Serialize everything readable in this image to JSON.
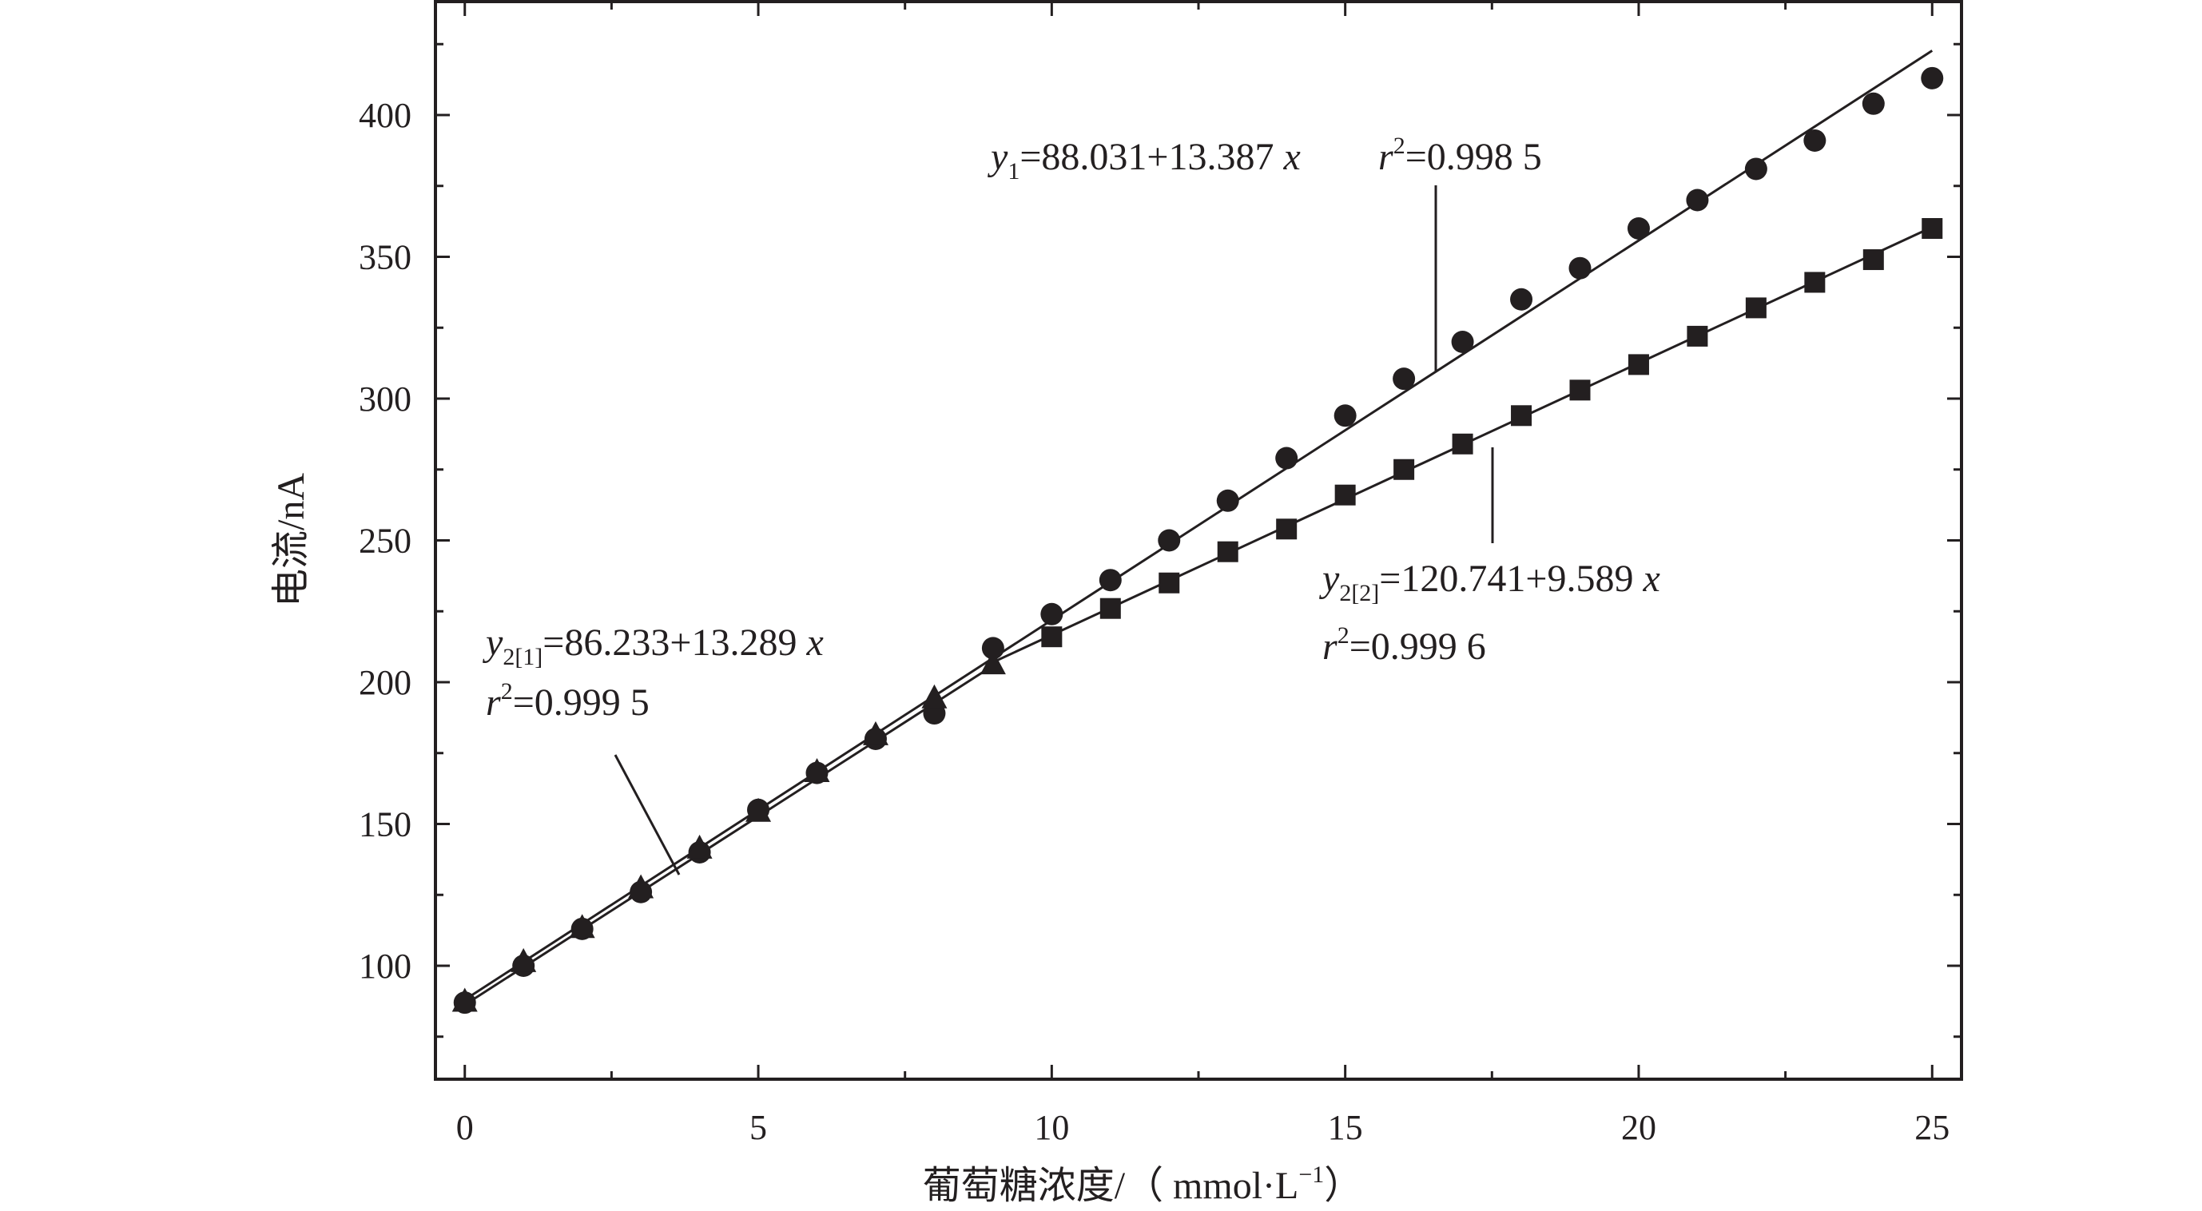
{
  "chart_data": {
    "type": "scatter",
    "xlabel": "葡萄糖浓度/（ mmol·L",
    "xlabel_sup": "−1",
    "xlabel_close": "）",
    "ylabel": "电流/nA",
    "xlim": [
      -0.5,
      25.5
    ],
    "ylim": [
      60,
      440
    ],
    "xticks": [
      0,
      5,
      10,
      15,
      20,
      25
    ],
    "yticks": [
      100,
      150,
      200,
      250,
      300,
      350,
      400
    ],
    "grid": false,
    "series": [
      {
        "marker": "circle",
        "x": [
          0,
          1,
          2,
          3,
          4,
          5,
          6,
          7,
          8,
          9,
          10,
          11,
          12,
          13,
          14,
          15,
          16,
          17,
          18,
          19,
          20,
          21,
          22,
          23,
          24,
          25
        ],
        "y": [
          87,
          100,
          113,
          126,
          140,
          155,
          168,
          180,
          189,
          212,
          224,
          236,
          250,
          264,
          279,
          294,
          307,
          320,
          335,
          346,
          360,
          370,
          381,
          391,
          404,
          413
        ],
        "fit": {
          "intercept": 88.031,
          "slope": 13.387,
          "x_range": [
            0,
            25
          ]
        }
      },
      {
        "marker": "triangle",
        "x": [
          0,
          1,
          2,
          3,
          4,
          5,
          6,
          7,
          8,
          9
        ],
        "y": [
          87,
          101,
          113,
          127,
          141,
          154,
          168,
          181,
          194,
          206
        ],
        "fit": {
          "intercept": 86.233,
          "slope": 13.289,
          "x_range": [
            0,
            9
          ]
        }
      },
      {
        "marker": "square",
        "x": [
          10,
          11,
          12,
          13,
          14,
          15,
          16,
          17,
          18,
          19,
          20,
          21,
          22,
          23,
          24,
          25
        ],
        "y": [
          216,
          226,
          235,
          246,
          254,
          266,
          275,
          284,
          294,
          303,
          312,
          322,
          332,
          341,
          349,
          360
        ],
        "fit": {
          "intercept": 120.741,
          "slope": 9.589,
          "x_range": [
            9,
            25
          ]
        }
      }
    ],
    "annotations": {
      "eq1": {
        "y": "y",
        "sub": "1",
        "eq": "=88.031+13.387 ",
        "x": "x",
        "r": "r",
        "r_sup": "2",
        "r_eq": "=0.998 5"
      },
      "eq21": {
        "y": "y",
        "sub": "2[1]",
        "eq": "=86.233+13.289 ",
        "x": "x",
        "r": "r",
        "r_sup": "2",
        "r_eq": "=0.999 5"
      },
      "eq22": {
        "y": "y",
        "sub": "2[2]",
        "eq": "=120.741+9.589 ",
        "x": "x",
        "r": "r",
        "r_sup": "2",
        "r_eq": "=0.999 6"
      }
    }
  }
}
